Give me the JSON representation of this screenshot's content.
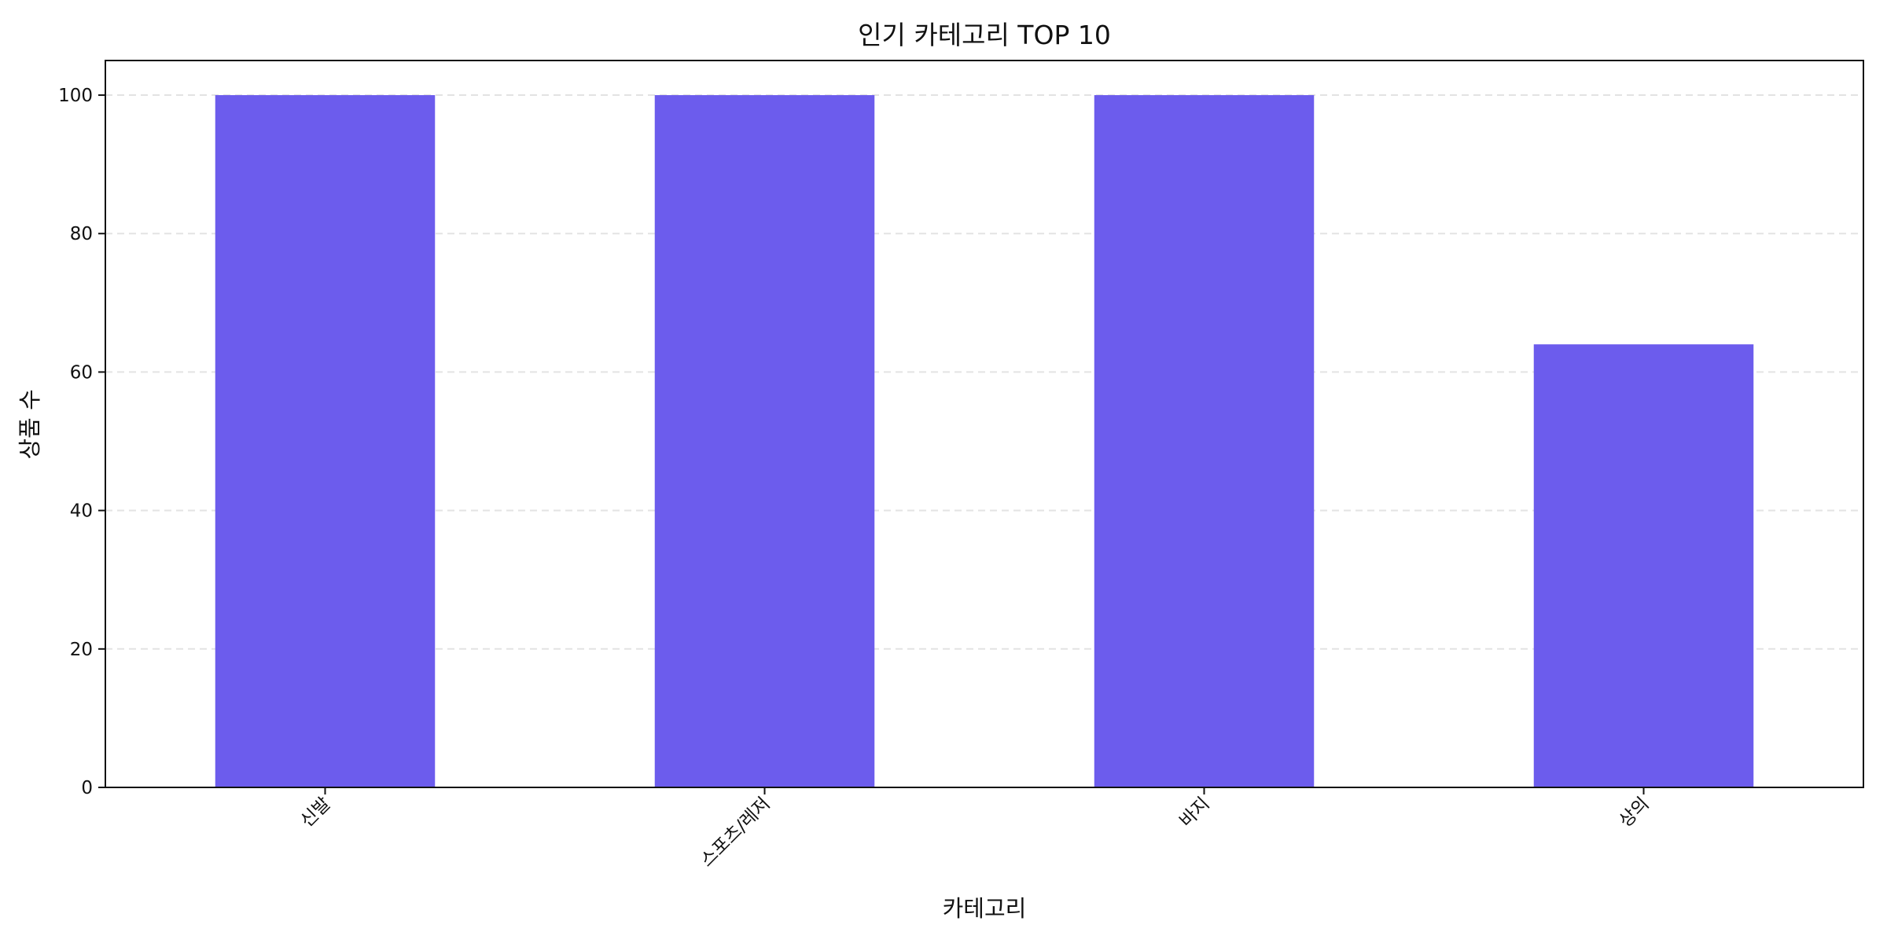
{
  "chart_data": {
    "type": "bar",
    "title": "인기 카테고리 TOP 10",
    "xlabel": "카테고리",
    "ylabel": "상품 수",
    "categories": [
      "신발",
      "스포츠/레저",
      "바지",
      "상의"
    ],
    "values": [
      100,
      100,
      100,
      64
    ],
    "ylim": [
      0,
      105
    ],
    "yticks": [
      0,
      20,
      40,
      60,
      80,
      100
    ],
    "grid": "y-dashed",
    "bar_color": "#6c5ced",
    "grid_color": "#e3e3e3",
    "axis_color": "#111111",
    "x_tick_rotation": "45°"
  }
}
